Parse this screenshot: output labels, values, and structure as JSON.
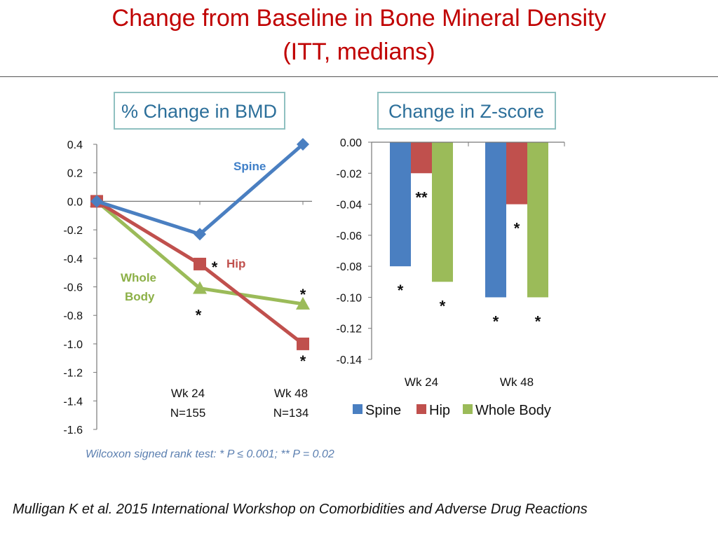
{
  "slide": {
    "title_line1": "Change from Baseline in Bone Mineral Density",
    "title_line2": "(ITT, medians)",
    "footer": "Mulligan K et al. 2015 International Workshop on Comorbidities and Adverse Drug Reactions"
  },
  "colors": {
    "title": "#c00000",
    "spine": "#4a7fc1",
    "hip": "#c0504d",
    "whole_body": "#9bbb59"
  },
  "chart_data": [
    {
      "type": "line",
      "title": "% Change in BMD",
      "ylim": [
        -1.6,
        0.4
      ],
      "y_ticks": [
        "0.4",
        "0.2",
        "0.0",
        "-0.2",
        "-0.4",
        "-0.6",
        "-0.8",
        "-1.0",
        "-1.2",
        "-1.4",
        "-1.6"
      ],
      "x_points": [
        0,
        24,
        48
      ],
      "x_labels": [
        {
          "line1": "Wk 24",
          "line2": "N=155"
        },
        {
          "line1": "Wk 48",
          "line2": "N=134"
        }
      ],
      "series": [
        {
          "name": "Spine",
          "label": "Spine",
          "values": [
            0.0,
            -0.23,
            0.4
          ],
          "stars": [
            "",
            "",
            ""
          ]
        },
        {
          "name": "Hip",
          "label": "Hip",
          "values": [
            0.0,
            -0.44,
            -1.0
          ],
          "stars": [
            "",
            "*",
            "*"
          ]
        },
        {
          "name": "Whole Body",
          "label_line1": "Whole",
          "label_line2": "Body",
          "values": [
            0.0,
            -0.61,
            -0.72
          ],
          "stars": [
            "",
            "*",
            "*"
          ]
        }
      ],
      "footnote": "Wilcoxon signed rank test:  * P ≤ 0.001;  ** P =  0.02"
    },
    {
      "type": "bar",
      "title": "Change in Z-score",
      "ylim": [
        -0.14,
        0.0
      ],
      "y_ticks": [
        "0.00",
        "-0.02",
        "-0.04",
        "-0.06",
        "-0.08",
        "-0.10",
        "-0.12",
        "-0.14"
      ],
      "categories": [
        "Wk 24",
        "Wk 48"
      ],
      "series": [
        {
          "name": "Spine",
          "values": [
            -0.08,
            -0.1
          ],
          "stars": [
            "*",
            "*"
          ]
        },
        {
          "name": "Hip",
          "values": [
            -0.02,
            -0.04
          ],
          "stars": [
            "**",
            "*"
          ]
        },
        {
          "name": "Whole Body",
          "values": [
            -0.09,
            -0.1
          ],
          "stars": [
            "*",
            "*"
          ]
        }
      ],
      "legend": [
        "Spine",
        "Hip",
        "Whole Body"
      ]
    }
  ]
}
